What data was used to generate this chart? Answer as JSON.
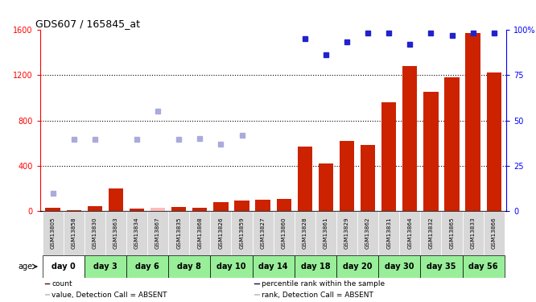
{
  "title": "GDS607 / 165845_at",
  "samples": [
    "GSM13805",
    "GSM13858",
    "GSM13830",
    "GSM13863",
    "GSM13834",
    "GSM13867",
    "GSM13835",
    "GSM13868",
    "GSM13826",
    "GSM13859",
    "GSM13827",
    "GSM13860",
    "GSM13828",
    "GSM13861",
    "GSM13829",
    "GSM13862",
    "GSM13831",
    "GSM13864",
    "GSM13832",
    "GSM13865",
    "GSM13833",
    "GSM13866"
  ],
  "groups": [
    {
      "label": "day 0",
      "white": true,
      "indices": [
        0,
        1
      ]
    },
    {
      "label": "day 3",
      "white": false,
      "indices": [
        2,
        3
      ]
    },
    {
      "label": "day 6",
      "white": false,
      "indices": [
        4,
        5
      ]
    },
    {
      "label": "day 8",
      "white": false,
      "indices": [
        6,
        7
      ]
    },
    {
      "label": "day 10",
      "white": false,
      "indices": [
        8,
        9
      ]
    },
    {
      "label": "day 14",
      "white": false,
      "indices": [
        10,
        11
      ]
    },
    {
      "label": "day 18",
      "white": false,
      "indices": [
        12,
        13
      ]
    },
    {
      "label": "day 20",
      "white": false,
      "indices": [
        14,
        15
      ]
    },
    {
      "label": "day 30",
      "white": false,
      "indices": [
        16,
        17
      ]
    },
    {
      "label": "day 35",
      "white": false,
      "indices": [
        18,
        19
      ]
    },
    {
      "label": "day 56",
      "white": false,
      "indices": [
        20,
        21
      ]
    }
  ],
  "red_bars": [
    30,
    10,
    40,
    200,
    20,
    0,
    35,
    25,
    80,
    90,
    100,
    110,
    570,
    420,
    620,
    580,
    960,
    1280,
    1050,
    1180,
    1570,
    1220
  ],
  "pink_bars": [
    0,
    0,
    0,
    0,
    0,
    30,
    0,
    0,
    0,
    0,
    0,
    0,
    0,
    0,
    0,
    0,
    0,
    0,
    0,
    0,
    0,
    0
  ],
  "blue_dots": [
    null,
    null,
    null,
    null,
    null,
    null,
    null,
    null,
    null,
    null,
    null,
    null,
    1520,
    1380,
    1490,
    1570,
    1570,
    1470,
    1570,
    1550,
    1570,
    1570
  ],
  "lavender_dots": [
    155,
    630,
    630,
    null,
    630,
    880,
    630,
    640,
    590,
    670,
    null,
    null,
    null,
    null,
    null,
    null,
    null,
    null,
    null,
    null,
    null,
    null
  ],
  "ylim_left": [
    0,
    1600
  ],
  "y_ticks_left": [
    0,
    400,
    800,
    1200,
    1600
  ],
  "y_ticks_right": [
    0,
    25,
    50,
    75,
    100
  ],
  "grid_lines": [
    400,
    800,
    1200
  ],
  "bar_color": "#cc2200",
  "pink_color": "#ffbbbb",
  "blue_color": "#2222cc",
  "lavender_color": "#aaaadd",
  "sample_bg_color": "#d8d8d8",
  "group_bg_color": "#99ee99",
  "day0_bg_color": "#ffffff",
  "legend_items": [
    {
      "color": "#cc2200",
      "label": "count"
    },
    {
      "color": "#2222cc",
      "label": "percentile rank within the sample"
    },
    {
      "color": "#ffbbbb",
      "label": "value, Detection Call = ABSENT"
    },
    {
      "color": "#aaaadd",
      "label": "rank, Detection Call = ABSENT"
    }
  ]
}
